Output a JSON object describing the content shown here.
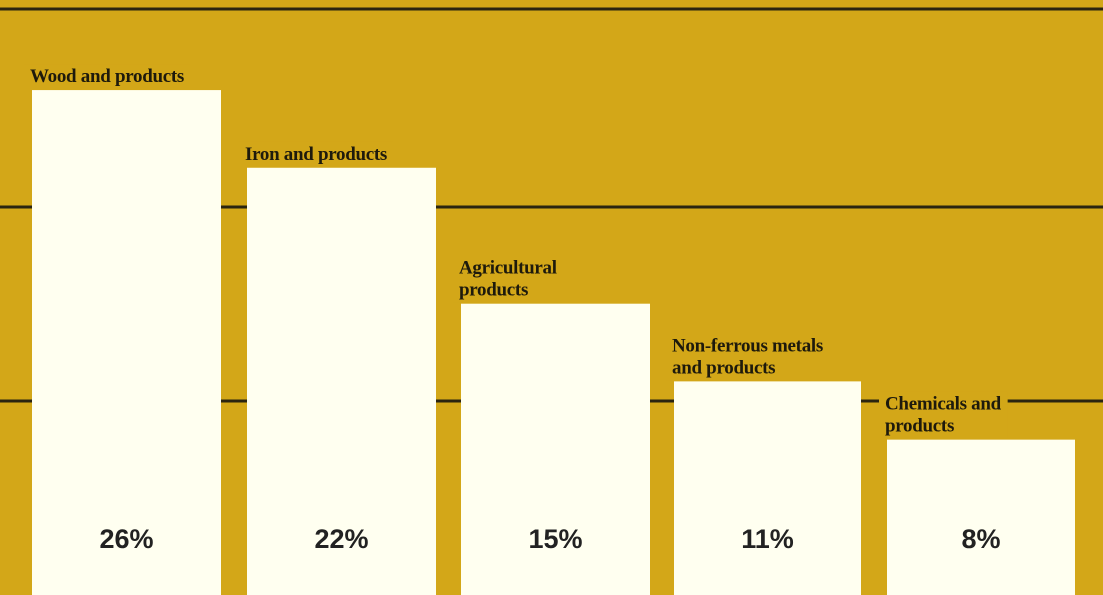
{
  "colors": {
    "background": "#d3a718",
    "bar": "#fffff0",
    "gridline": "#2a2410",
    "text": "#1e1a0c"
  },
  "chart_data": {
    "type": "bar",
    "title": "",
    "xlabel": "",
    "ylabel": "",
    "categories": [
      [
        "Wood and products"
      ],
      [
        "Iron and products"
      ],
      [
        "Agricultural",
        "products"
      ],
      [
        "Non-ferrous metals",
        "and products"
      ],
      [
        "Chemicals and",
        "products"
      ]
    ],
    "values": [
      26,
      22,
      15,
      11,
      8
    ],
    "value_labels": [
      "26%",
      "22%",
      "15%",
      "11%",
      "8%"
    ],
    "unit": "%",
    "ylim": [
      0,
      30
    ],
    "gridlines": [
      10,
      20
    ],
    "grid": true,
    "legend": "none"
  }
}
